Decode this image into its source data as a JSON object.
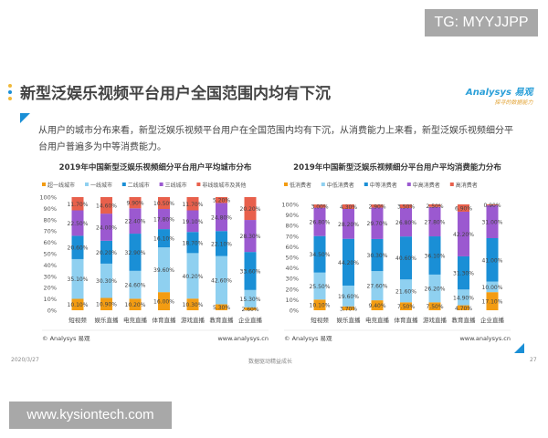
{
  "watermarks": {
    "top": "TG: MYYJJPP",
    "bottom": "www.kysiontech.com"
  },
  "slide": {
    "title": "新型泛娱乐视频平台用户全国范围内均有下沉",
    "logo": {
      "line1": "Analysys 易观",
      "line2": "探寻的数据能力"
    },
    "description": "从用户的城市分布来看，新型泛娱乐视频平台用户在全国范围内均有下沉，从消费能力上来看，新型泛娱乐视频细分平台用户普遍多为中等消费能力。",
    "footer": {
      "date": "2020/3/27",
      "slogan": "数据驱动精益成长",
      "page": "27"
    },
    "accent_color": "#1a8fd6"
  },
  "chart_data": [
    {
      "type": "bar",
      "stacked": true,
      "title": "2019年中国新型泛娱乐视频细分平台用户平均城市分布",
      "categories": [
        "短视频",
        "娱乐直播",
        "电竞直播",
        "体育直播",
        "游戏直播",
        "教育直播",
        "企业直播"
      ],
      "yticks": [
        "0%",
        "10%",
        "20%",
        "30%",
        "40%",
        "50%",
        "60%",
        "70%",
        "80%",
        "90%",
        "100%"
      ],
      "ylim": [
        0,
        100
      ],
      "legend_position": "top",
      "series": [
        {
          "name": "超一线城市",
          "color": "#f39c12",
          "values": [
            10.1,
            10.9,
            10.2,
            16.0,
            10.3,
            5.3,
            2.6
          ]
        },
        {
          "name": "一线城市",
          "color": "#8fd0f0",
          "values": [
            35.1,
            30.3,
            24.6,
            39.6,
            40.2,
            42.6,
            15.3
          ]
        },
        {
          "name": "二线城市",
          "color": "#1a8fd6",
          "values": [
            20.6,
            20.2,
            32.9,
            16.1,
            18.7,
            22.1,
            33.6
          ]
        },
        {
          "name": "三线城市",
          "color": "#9b59d0",
          "values": [
            22.5,
            24.0,
            22.4,
            17.8,
            19.1,
            24.8,
            28.3
          ]
        },
        {
          "name": "非线级城市及其他",
          "color": "#e8604c",
          "values": [
            11.7,
            14.6,
            9.9,
            10.5,
            11.7,
            5.2,
            20.2
          ]
        }
      ],
      "source": "© Analysys 易观",
      "source_url": "www.analysys.cn"
    },
    {
      "type": "bar",
      "stacked": true,
      "title": "2019年中国新型泛娱乐视频细分平台用户平均消费能力分布",
      "categories": [
        "短视频",
        "娱乐直播",
        "电竞直播",
        "体育直播",
        "游戏直播",
        "教育直播",
        "企业直播"
      ],
      "yticks": [
        "0%",
        "10%",
        "20%",
        "30%",
        "40%",
        "50%",
        "60%",
        "70%",
        "80%",
        "90%",
        "100%"
      ],
      "ylim": [
        0,
        100
      ],
      "legend_position": "top",
      "series": [
        {
          "name": "低消费者",
          "color": "#f39c12",
          "values": [
            10.1,
            3.7,
            9.4,
            7.5,
            7.5,
            4.7,
            17.1
          ]
        },
        {
          "name": "中低消费者",
          "color": "#8fd0f0",
          "values": [
            25.5,
            19.6,
            27.6,
            21.6,
            26.2,
            14.9,
            10.0
          ]
        },
        {
          "name": "中等消费者",
          "color": "#1a8fd6",
          "values": [
            34.5,
            44.2,
            30.3,
            40.6,
            36.1,
            31.3,
            41.0
          ]
        },
        {
          "name": "中高消费者",
          "color": "#9b59d0",
          "values": [
            26.8,
            28.2,
            29.7,
            26.8,
            27.8,
            42.2,
            31.0
          ]
        },
        {
          "name": "高消费者",
          "color": "#e8604c",
          "values": [
            3.0,
            4.3,
            2.9,
            3.5,
            2.5,
            6.9,
            0.9
          ]
        }
      ],
      "source": "© Analysys 易观",
      "source_url": "www.analysys.cn"
    }
  ]
}
